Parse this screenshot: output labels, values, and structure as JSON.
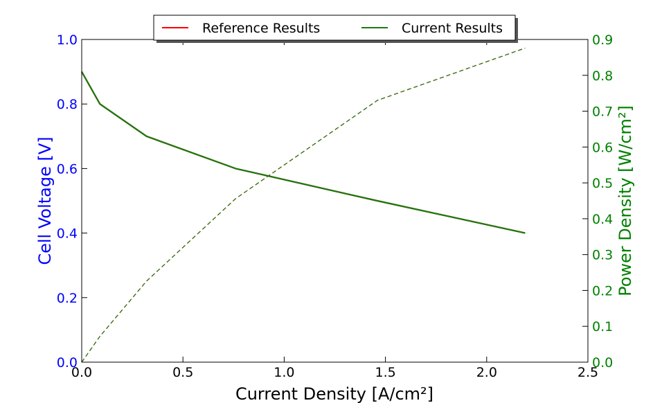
{
  "chart_data": {
    "type": "line",
    "xlabel": "Current Density [A/cm²]",
    "ylabel": "Cell Voltage [V]",
    "y2label": "Power Density [W/cm²]",
    "xlim": [
      0.0,
      2.5
    ],
    "ylim": [
      0.0,
      1.0
    ],
    "y2lim": [
      0.0,
      0.9
    ],
    "x_ticks": [
      "0.0",
      "0.5",
      "1.0",
      "1.5",
      "2.0",
      "2.5"
    ],
    "y_ticks": [
      "0.0",
      "0.2",
      "0.4",
      "0.6",
      "0.8",
      "1.0"
    ],
    "y2_ticks": [
      "0.0",
      "0.1",
      "0.2",
      "0.3",
      "0.4",
      "0.5",
      "0.6",
      "0.7",
      "0.8",
      "0.9"
    ],
    "grid": false,
    "legend_position": "top-center",
    "legend": [
      "Reference Results",
      "Current Results"
    ],
    "series": [
      {
        "name": "Reference Results",
        "axis": "left",
        "color": "#ff0000",
        "style": "solid",
        "x": [
          0.0,
          0.09,
          0.32,
          0.76,
          1.46,
          2.19
        ],
        "y": [
          0.9,
          0.8,
          0.7,
          0.6,
          0.5,
          0.4
        ]
      },
      {
        "name": "Current Results",
        "axis": "left",
        "color": "#1a7a10",
        "style": "solid",
        "x": [
          0.0,
          0.09,
          0.32,
          0.76,
          1.46,
          2.19
        ],
        "y": [
          0.9,
          0.8,
          0.7,
          0.6,
          0.5,
          0.4
        ]
      },
      {
        "axis": "right",
        "color": "#ff0000",
        "style": "dashed",
        "x": [
          0.0,
          0.09,
          0.32,
          0.76,
          1.46,
          2.19
        ],
        "y": [
          0.0,
          0.072,
          0.226,
          0.456,
          0.73,
          0.876
        ]
      },
      {
        "axis": "right",
        "color": "#1a7a10",
        "style": "dashed",
        "x": [
          0.0,
          0.09,
          0.32,
          0.76,
          1.46,
          2.19
        ],
        "y": [
          0.0,
          0.072,
          0.226,
          0.456,
          0.73,
          0.876
        ]
      }
    ]
  }
}
